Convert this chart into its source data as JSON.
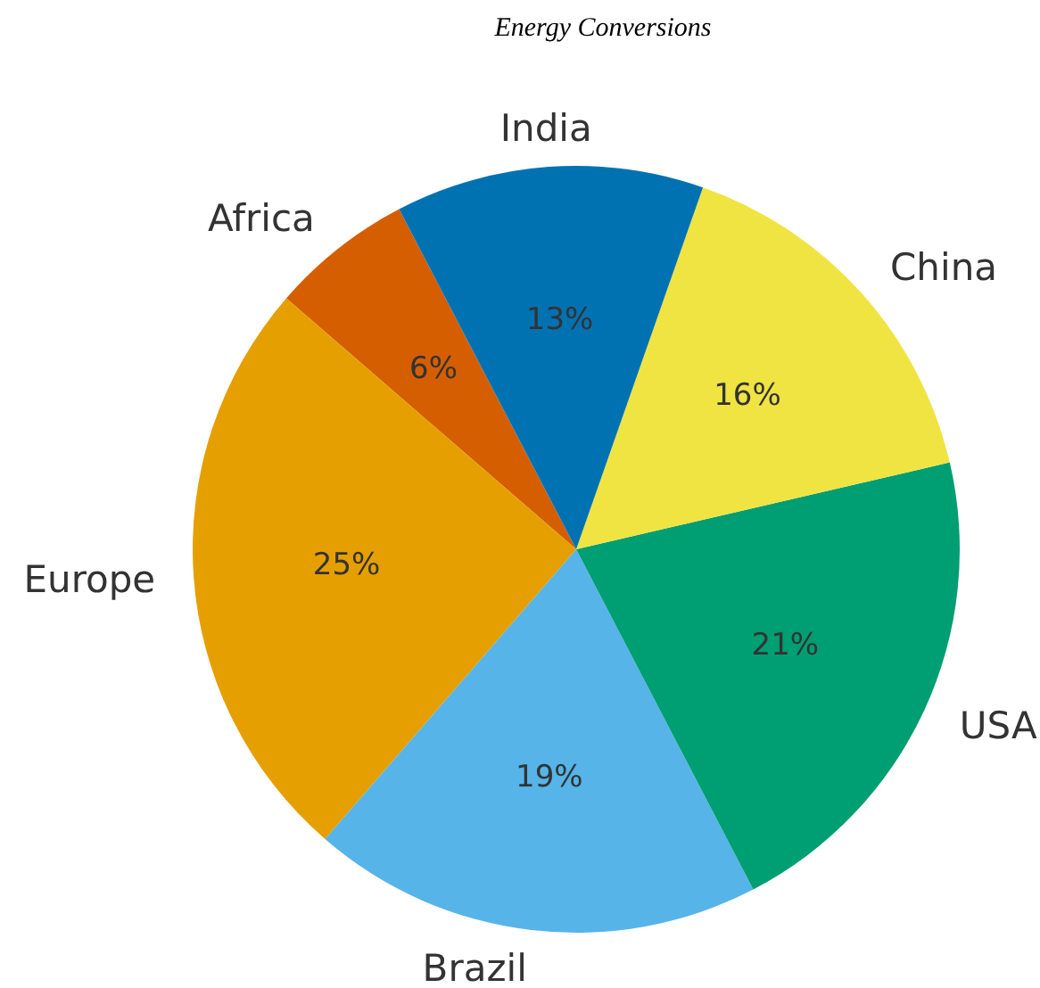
{
  "chart_data": {
    "type": "pie",
    "title": "Energy Conversions",
    "categories": [
      "Africa",
      "Europe",
      "Brazil",
      "USA",
      "China",
      "India"
    ],
    "values": [
      6,
      25,
      19,
      21,
      16,
      13
    ],
    "value_labels": [
      "6%",
      "25%",
      "19%",
      "21%",
      "16%",
      "13%"
    ],
    "colors": [
      "#d55e00",
      "#e69f00",
      "#56b4e9",
      "#009e73",
      "#f0e442",
      "#0072b2"
    ]
  }
}
